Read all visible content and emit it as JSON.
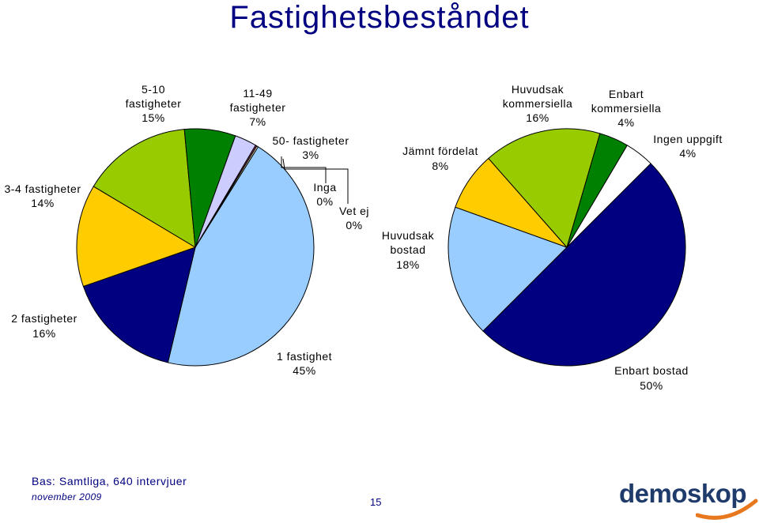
{
  "title": "Fastighetsbeståndet",
  "chart_data": [
    {
      "type": "pie",
      "slices": [
        {
          "label": "1 fastighet",
          "value": 45,
          "display": "45%",
          "color": "#99ccff"
        },
        {
          "label": "2 fastigheter",
          "value": 16,
          "display": "16%",
          "color": "#000080"
        },
        {
          "label": "3-4 fastigheter",
          "value": 14,
          "display": "14%",
          "color": "#ffcc00"
        },
        {
          "label": "5-10 fastigheter",
          "value": 15,
          "display": "15%",
          "color": "#99cc00"
        },
        {
          "label": "11-49 fastigheter",
          "value": 7,
          "display": "7%",
          "color": "#008000"
        },
        {
          "label": "50- fastigheter",
          "value": 3,
          "display": "3%",
          "color": "#ccccff"
        },
        {
          "label": "Inga",
          "value": 0.2,
          "display": "0%",
          "color": "#993366"
        },
        {
          "label": "Vet ej",
          "value": 0.2,
          "display": "0%",
          "color": "#ffffcc"
        }
      ]
    },
    {
      "type": "pie",
      "slices": [
        {
          "label": "Enbart bostad",
          "value": 50,
          "display": "50%",
          "color": "#000080"
        },
        {
          "label": "Huvudsak bostad",
          "value": 18,
          "display": "18%",
          "color": "#99ccff"
        },
        {
          "label": "Jämnt fördelat",
          "value": 8,
          "display": "8%",
          "color": "#ffcc00"
        },
        {
          "label": "Huvudsak kommersiella",
          "value": 16,
          "display": "16%",
          "color": "#99cc00"
        },
        {
          "label": "Enbart kommersiella",
          "value": 4,
          "display": "4%",
          "color": "#008000"
        },
        {
          "label": "Ingen uppgift",
          "value": 4,
          "display": "4%",
          "color": "#ffffff"
        }
      ]
    }
  ],
  "labels": {
    "c1": {
      "s1_a": "1 fastighet",
      "s1_b": "45%",
      "s2_a": "2 fastigheter",
      "s2_b": "16%",
      "s3_a": "3-4 fastigheter",
      "s3_b": "14%",
      "s4_a": "5-10",
      "s4_b": "fastigheter",
      "s4_c": "15%",
      "s5_a": "11-49",
      "s5_b": "fastigheter",
      "s5_c": "7%",
      "s6_a": "50- fastigheter",
      "s6_b": "3%",
      "s7_a": "Inga",
      "s7_b": "0%",
      "s8_a": "Vet ej",
      "s8_b": "0%"
    },
    "c2": {
      "s1_a": "Enbart bostad",
      "s1_b": "50%",
      "s2_a": "Huvudsak",
      "s2_b": "bostad",
      "s2_c": "18%",
      "s3_a": "Jämnt fördelat",
      "s3_b": "8%",
      "s4_a": "Huvudsak",
      "s4_b": "kommersiella",
      "s4_c": "16%",
      "s5_a": "Enbart",
      "s5_b": "kommersiella",
      "s5_c": "4%",
      "s6_a": "Ingen uppgift",
      "s6_b": "4%"
    }
  },
  "footer": {
    "bas": "Bas: Samtliga, 640 intervjuer",
    "date": "november 2009",
    "page": "15",
    "logo": "demoskop"
  }
}
